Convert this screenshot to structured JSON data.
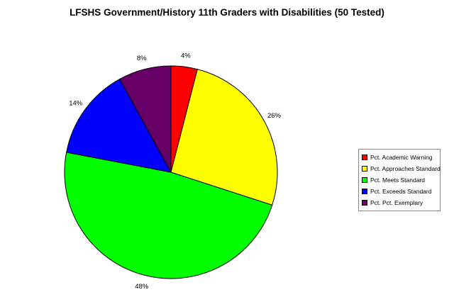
{
  "chart_data": {
    "type": "pie",
    "title": "LFSHS Government/History 11th Graders with Disabilities (50 Tested)",
    "slices": [
      {
        "label": "Pct. Academic Warning",
        "value": 4,
        "display": "4%",
        "color": "#ff0000"
      },
      {
        "label": "Pct. Approaches Standard",
        "value": 26,
        "display": "26%",
        "color": "#ffff00"
      },
      {
        "label": "Pct. Meets Standard",
        "value": 48,
        "display": "48%",
        "color": "#00ff00"
      },
      {
        "label": "Pct. Exceeds Standard",
        "value": 14,
        "display": "14%",
        "color": "#0000ff"
      },
      {
        "label": "Pct. Pct. Exemplary",
        "value": 8,
        "display": "8%",
        "color": "#660066"
      }
    ],
    "start_angle": "12 o'clock",
    "direction": "clockwise",
    "legend_position": "right"
  }
}
